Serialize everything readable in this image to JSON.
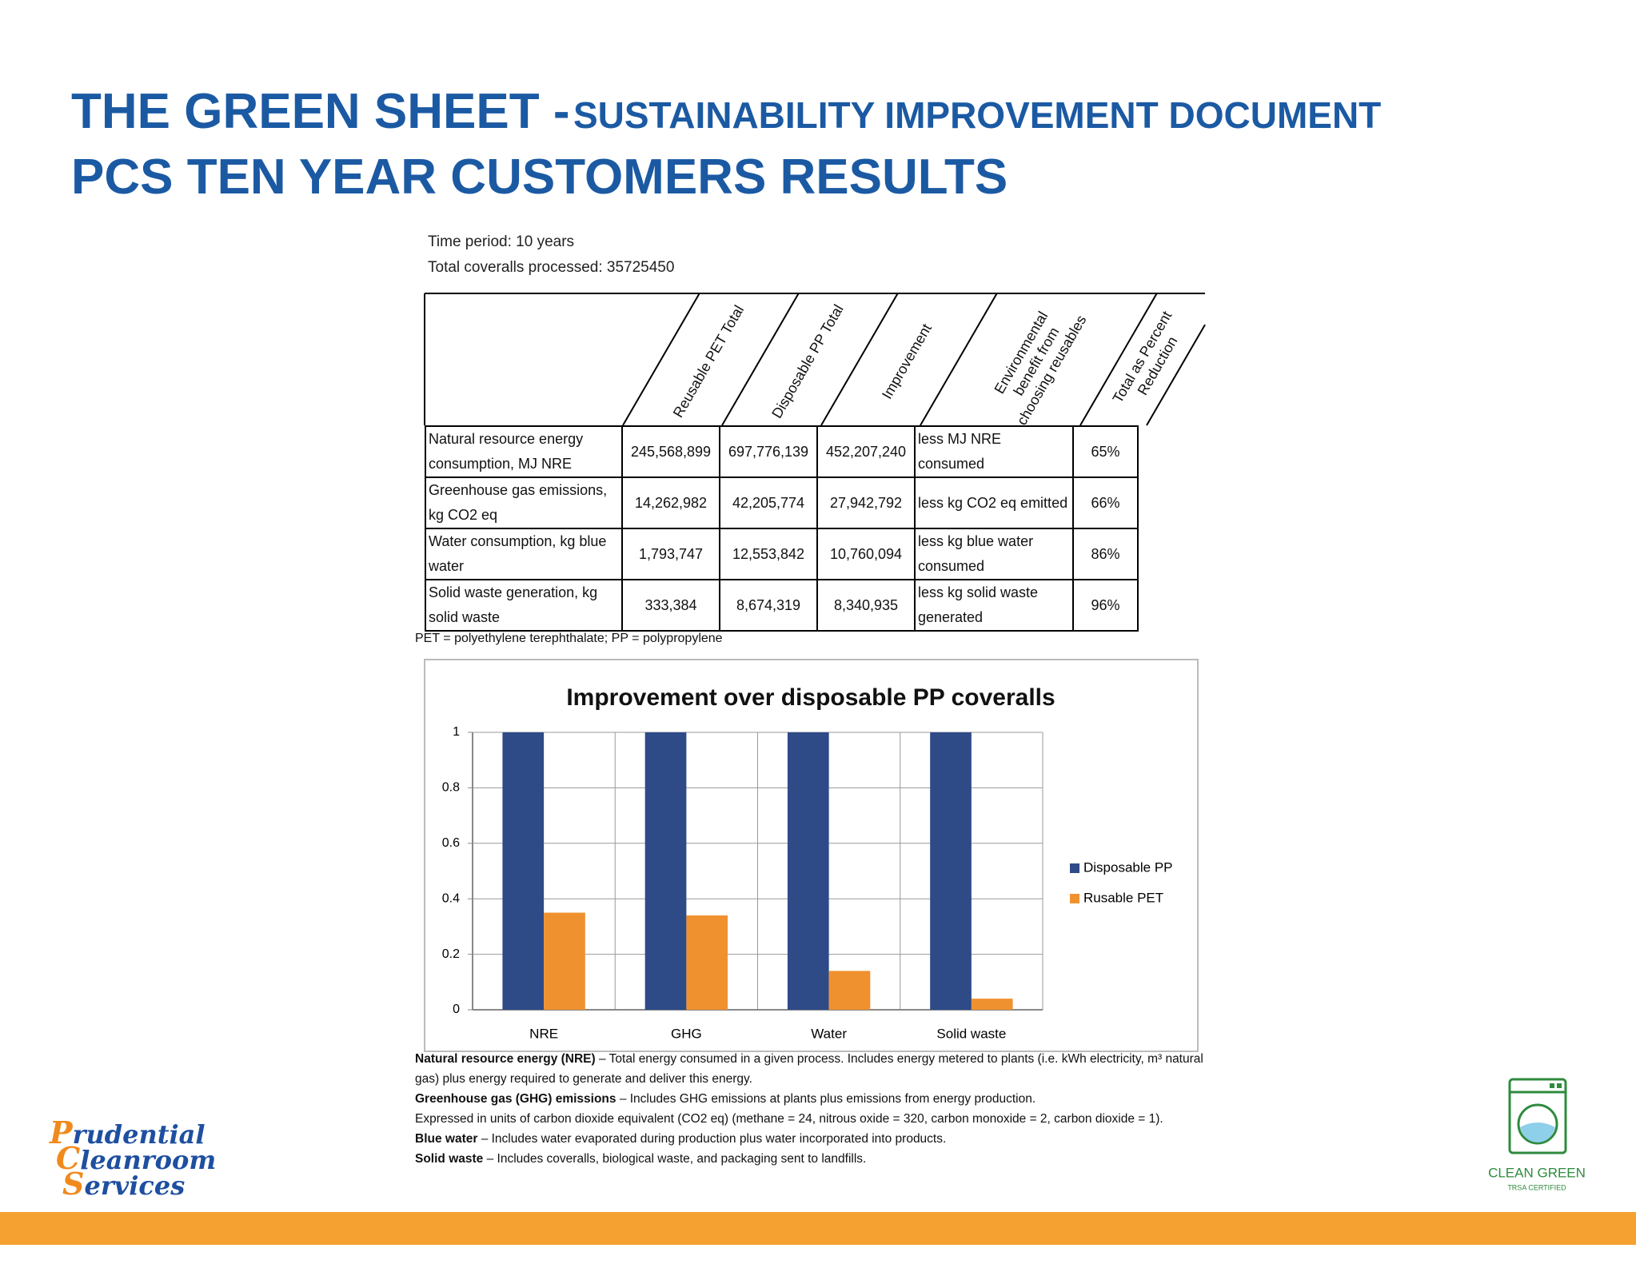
{
  "header": {
    "title": "THE GREEN SHEET -",
    "subtitle": "SUSTAINABILITY IMPROVEMENT DOCUMENT",
    "heading": "PCS TEN YEAR CUSTOMERS RESULTS"
  },
  "info": [
    "Time period: 10 years",
    "Total coveralls processed: 35725450"
  ],
  "table": {
    "columns": [
      "Reusable PET Total",
      "Disposable PP Total",
      "Improvement",
      "Environmental benefit from choosing reusables",
      "Total as Percent Reduction"
    ],
    "rows": [
      [
        "Natural resource energy consumption, MJ NRE",
        "245,568,899",
        "697,776,139",
        "452,207,240",
        "less MJ NRE consumed",
        "65%"
      ],
      [
        "Greenhouse gas emissions, kg CO2 eq",
        "14,262,982",
        "42,205,774",
        "27,942,792",
        "less kg CO2 eq emitted",
        "66%"
      ],
      [
        "Water consumption, kg blue water",
        "1,793,747",
        "12,553,842",
        "10,760,094",
        "less kg blue water consumed",
        "86%"
      ],
      [
        "Solid waste generation, kg solid waste",
        "333,384",
        "8,674,319",
        "8,340,935",
        "less kg solid waste generated",
        "96%"
      ]
    ]
  },
  "table_note": "PET = polyethylene terephthalate; PP = polypropylene",
  "chart_data": {
    "type": "bar",
    "title": "Improvement over disposable PP coveralls",
    "categories": [
      "NRE",
      "GHG",
      "Water",
      "Solid waste"
    ],
    "series": [
      {
        "name": "Disposable PP",
        "color": "#2e4a87",
        "values": [
          1,
          1,
          1,
          1
        ]
      },
      {
        "name": "Rusable PET",
        "color": "#f0912f",
        "values": [
          0.35,
          0.34,
          0.14,
          0.04
        ]
      }
    ],
    "ylim": [
      0,
      1
    ],
    "yticks": [
      0,
      0.2,
      0.4,
      0.6,
      0.8,
      1
    ],
    "grid": true,
    "legend": "right"
  },
  "footnotes": [
    {
      "term": "Natural resource energy (NRE)",
      "text": " – Total energy consumed in a given process. Includes energy metered to plants (i.e. kWh electricity, m³ natural gas) plus energy required to generate and deliver this energy."
    },
    {
      "term": "Greenhouse gas (GHG) emissions",
      "text": " – Includes GHG emissions at plants plus emissions from energy production."
    },
    {
      "text": "Expressed in units of carbon dioxide equivalent (CO2 eq) (methane = 24, nitrous oxide = 320, carbon monoxide = 2, carbon dioxide = 1)."
    },
    {
      "term": "Blue water",
      "text": " – Includes water evaporated during production plus water incorporated into products."
    },
    {
      "term": "Solid waste",
      "text": " – Includes coveralls, biological waste, and packaging sent to landfills."
    }
  ],
  "logos": {
    "company": [
      "Prudential",
      "Cleanroom",
      "Services"
    ],
    "badge": "CLEAN GREEN",
    "badge_sub": "TRSA CERTIFIED"
  }
}
